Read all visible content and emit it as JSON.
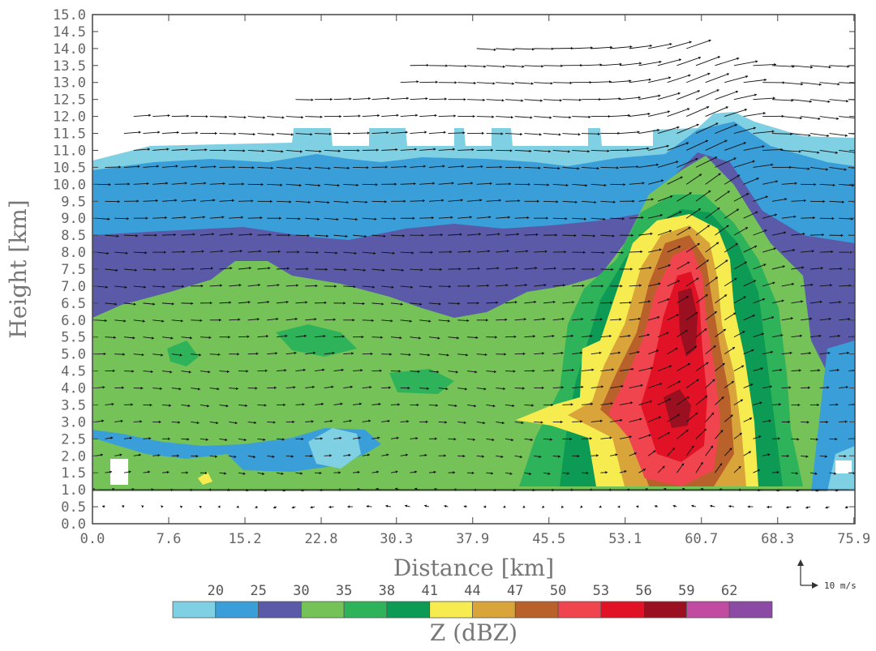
{
  "chart_data": {
    "type": "heatmap",
    "subtype": "radar reflectivity vertical cross-section with wind vectors",
    "xlabel": "Distance [km]",
    "ylabel": "Height [km]",
    "xlim": [
      0.0,
      76.0
    ],
    "ylim": [
      0.0,
      15.0
    ],
    "x_ticks": [
      "0.0",
      "7.6",
      "15.2",
      "22.8",
      "30.3",
      "37.9",
      "45.5",
      "53.1",
      "60.7",
      "68.3",
      "75.9"
    ],
    "x_tick_values": [
      0.0,
      7.6,
      15.2,
      22.8,
      30.3,
      37.9,
      45.5,
      53.1,
      60.7,
      68.3,
      75.9
    ],
    "y_ticks": [
      "0.0",
      "0.5",
      "1.0",
      "1.5",
      "2.0",
      "2.5",
      "3.0",
      "3.5",
      "4.0",
      "4.5",
      "5.0",
      "5.5",
      "6.0",
      "6.5",
      "7.0",
      "7.5",
      "8.0",
      "8.5",
      "9.0",
      "9.5",
      "10.0",
      "10.5",
      "11.0",
      "11.5",
      "12.0",
      "12.5",
      "13.0",
      "13.5",
      "14.0",
      "14.5",
      "15.0"
    ],
    "colorbar": {
      "title": "Z (dBZ)",
      "levels": [
        "20",
        "25",
        "30",
        "35",
        "38",
        "41",
        "44",
        "47",
        "50",
        "53",
        "56",
        "59",
        "62"
      ],
      "colors": [
        "#7fd0e3",
        "#3a9fd9",
        "#5a5aa8",
        "#75c258",
        "#2eb35a",
        "#0d9a55",
        "#f7ec4f",
        "#d9a43a",
        "#b8612b",
        "#f0444e",
        "#e11226",
        "#9b1020",
        "#c04ba0",
        "#8b4aa4"
      ]
    },
    "reference_vector": {
      "label": "10 m/s",
      "value": 10
    },
    "features": {
      "echo_top_km": 11.5,
      "convective_core_x_km": [
        53.1,
        64.0
      ],
      "max_reflectivity_dBZ": 59,
      "max_reflectivity_height_km": [
        3.0,
        6.5
      ]
    }
  }
}
